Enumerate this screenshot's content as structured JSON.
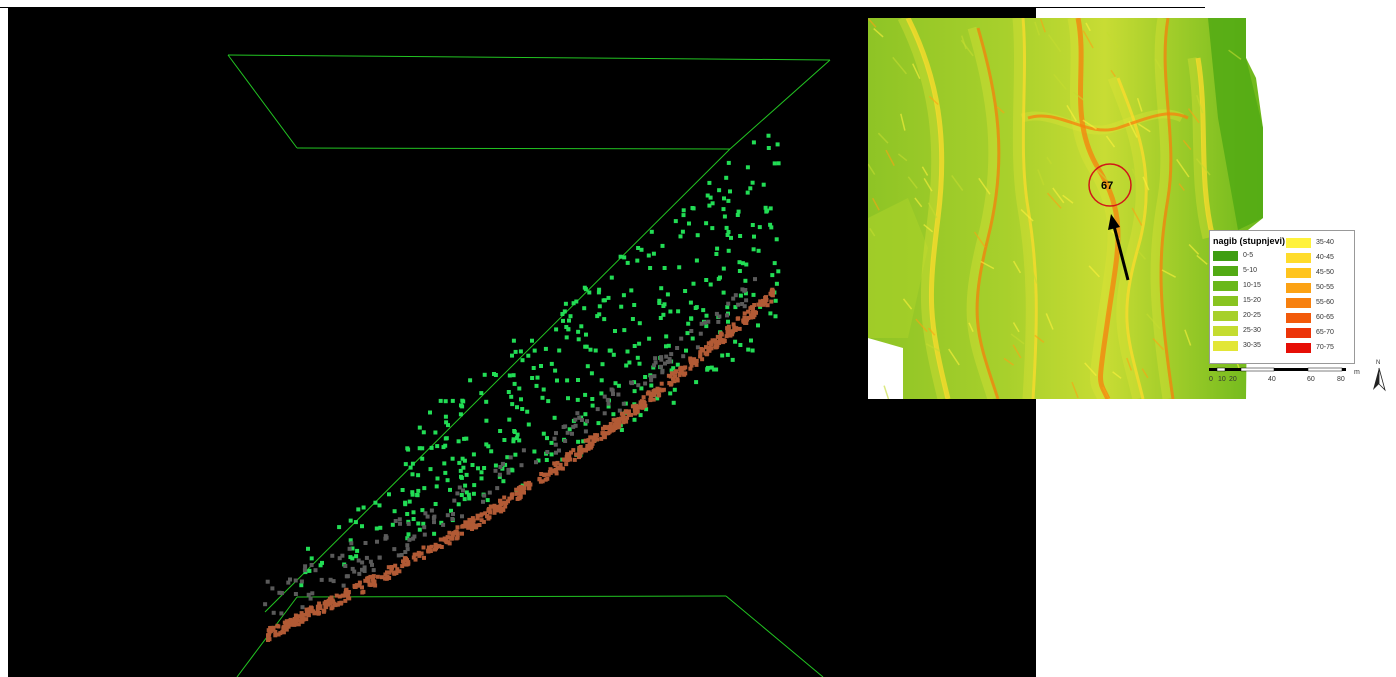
{
  "pointcloud": {
    "background": "#000000",
    "box_color": "#22c422",
    "vegetation_color": "#22dd55",
    "unclassified_color": "#5a5a5a",
    "ground_color": "#b25a35"
  },
  "slope_map": {
    "site_label": "67",
    "marker_color": "#d01818",
    "arrow_color": "#000000",
    "legend": {
      "title": "nagib (stupnjevi)",
      "classes": [
        {
          "label": "0-5",
          "color": "#3f9e12"
        },
        {
          "label": "5-10",
          "color": "#52aa14"
        },
        {
          "label": "10-15",
          "color": "#6ab81a"
        },
        {
          "label": "15-20",
          "color": "#88c420"
        },
        {
          "label": "20-25",
          "color": "#a6d02a"
        },
        {
          "label": "25-30",
          "color": "#c4dc30"
        },
        {
          "label": "30-35",
          "color": "#e2e636"
        },
        {
          "label": "35-40",
          "color": "#fff23c"
        },
        {
          "label": "40-45",
          "color": "#ffdc2c"
        },
        {
          "label": "45-50",
          "color": "#ffc41e"
        },
        {
          "label": "50-55",
          "color": "#fca214"
        },
        {
          "label": "55-60",
          "color": "#f7800e"
        },
        {
          "label": "60-65",
          "color": "#f25a0a"
        },
        {
          "label": "65-70",
          "color": "#ec3408"
        },
        {
          "label": "70-75",
          "color": "#e60e06"
        }
      ]
    },
    "scale": {
      "ticks": [
        "0",
        "10",
        "20",
        "40",
        "60",
        "80"
      ],
      "unit": "m"
    },
    "north_label": "N"
  }
}
